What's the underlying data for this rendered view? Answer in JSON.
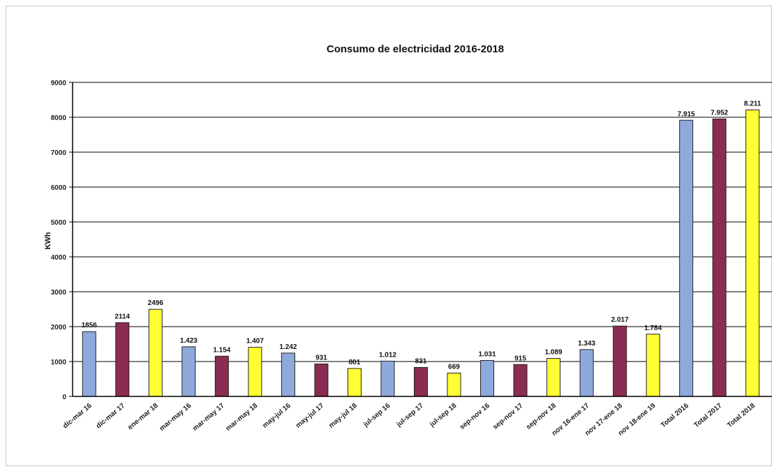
{
  "chart_data": {
    "type": "bar",
    "title": "Consumo de electricidad 2016-2018",
    "ylabel": "KWh",
    "xlabel": "",
    "ylim": [
      0,
      9000
    ],
    "yticks": [
      0,
      1000,
      2000,
      3000,
      4000,
      5000,
      6000,
      7000,
      8000,
      9000
    ],
    "grid": true,
    "colors": {
      "2016": "#8ea9db",
      "2017": "#8b2c52",
      "2018": "#ffff33",
      "bar_edge": "#222222",
      "grid": "#000000"
    },
    "categories": [
      "dic-mar 16",
      "dic-mar 17",
      "ene-mar 18",
      "mar-may 16",
      "mar-may 17",
      "mar-may 18",
      "may-jul 16",
      "may-jul 17",
      "may-jul 18",
      "jul-sep 16",
      "jul-sep 17",
      "jul-sep 18",
      "sep-nov 16",
      "sep-nov 17",
      "sep-nov 18",
      "nov 16-ene 17",
      "nov 17-ene 18",
      "nov 18-ene 19",
      "Total 2016",
      "Total 2017",
      "Total 2018"
    ],
    "values": [
      1856,
      2114,
      2496,
      1423,
      1154,
      1407,
      1242,
      931,
      801,
      1012,
      831,
      669,
      1031,
      915,
      1089,
      1343,
      2017,
      1784,
      7915,
      7952,
      8211
    ],
    "data_labels": [
      "1856",
      "2114",
      "2496",
      "1.423",
      "1.154",
      "1.407",
      "1.242",
      "931",
      "801",
      "1.012",
      "831",
      "669",
      "1.031",
      "915",
      "1.089",
      "1.343",
      "2.017",
      "1.784",
      "7.915",
      "7.952",
      "8.211"
    ],
    "bar_year": [
      "2016",
      "2017",
      "2018",
      "2016",
      "2017",
      "2018",
      "2016",
      "2017",
      "2018",
      "2016",
      "2017",
      "2018",
      "2016",
      "2017",
      "2018",
      "2016",
      "2017",
      "2018",
      "2016",
      "2017",
      "2018"
    ]
  }
}
